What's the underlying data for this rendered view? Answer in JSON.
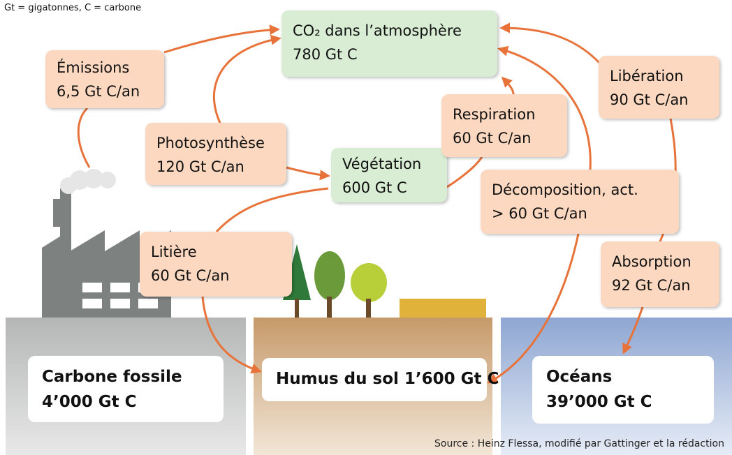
{
  "note": "Gt = gigatonnes, C = carbone",
  "stocks": [
    {
      "label": "CO₂ dans l’atmosphère",
      "amount": "780 Gt C"
    },
    {
      "label": "Végétation",
      "amount": "600 Gt C"
    },
    {
      "label": "Carbone fossile",
      "amount": "4’000 Gt C"
    },
    {
      "label": "Humus du sol 1’600 Gt C"
    },
    {
      "label": "Océans",
      "amount": "39’000 Gt C"
    }
  ],
  "flows": [
    {
      "label": "Émissions",
      "amount": "6,5 Gt C/an"
    },
    {
      "label": "Photosynthèse",
      "amount": "120 Gt C/an"
    },
    {
      "label": "Respiration",
      "amount": "60 Gt C/an"
    },
    {
      "label": "Libération",
      "amount": "90 Gt C/an"
    },
    {
      "label": "Décomposition, act.",
      "amount": "> 60 Gt C/an"
    },
    {
      "label": "Litière",
      "amount": "60 Gt C/an"
    },
    {
      "label": "Absorption",
      "amount": "92 Gt C/an"
    }
  ],
  "source": "Source : Heinz Flessa, modifié par Gattinger et la rédaction"
}
